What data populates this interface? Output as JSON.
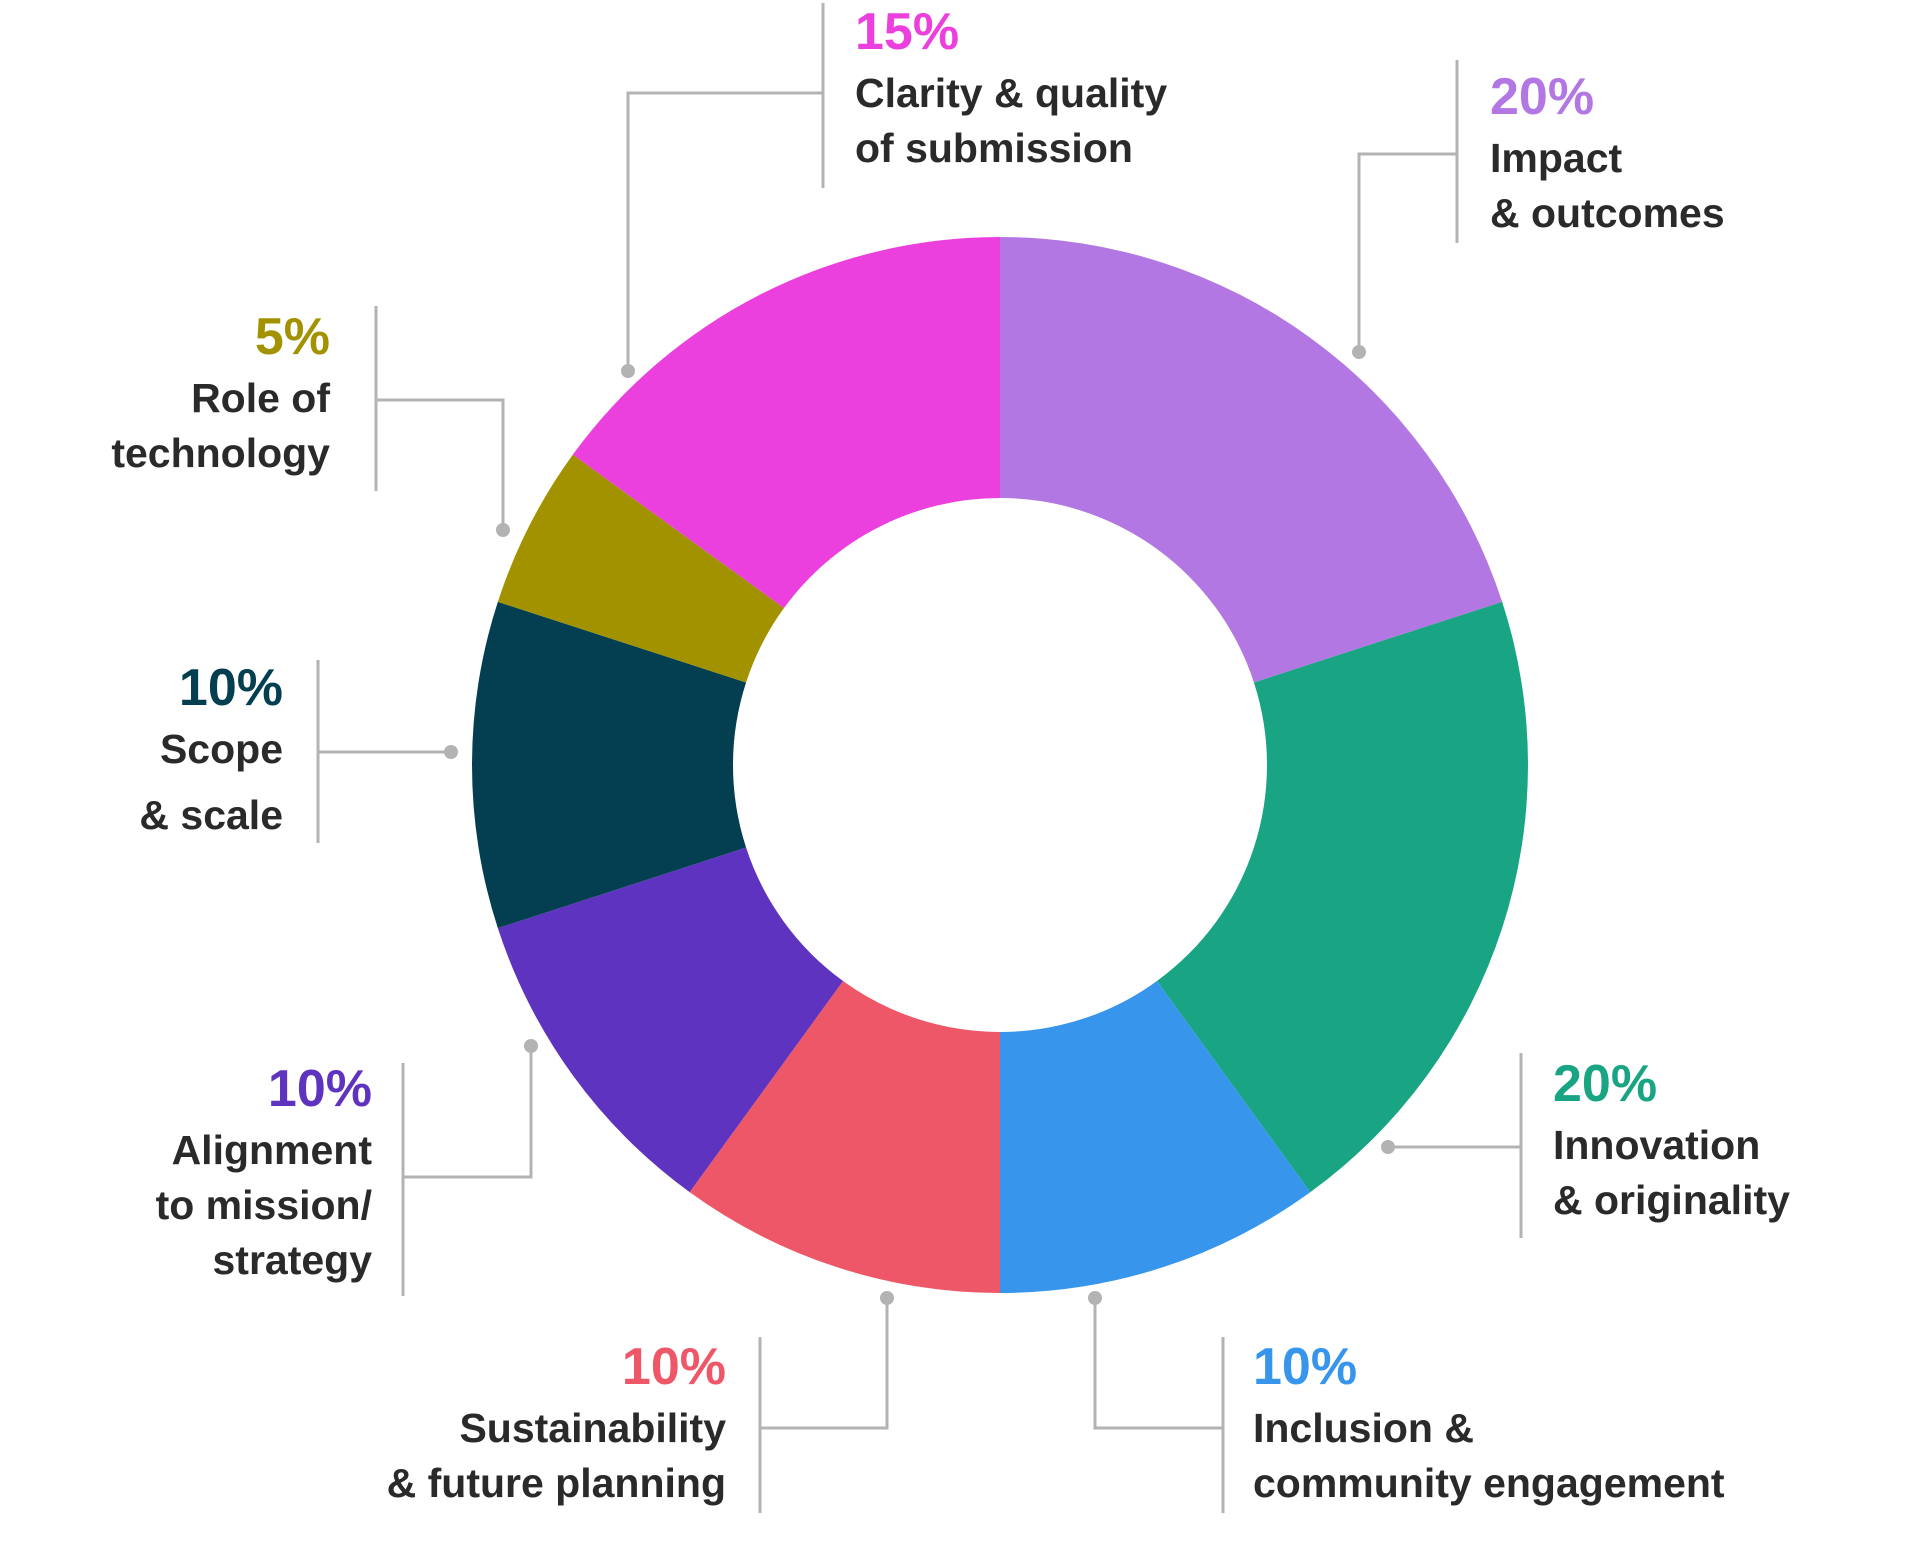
{
  "chart_data": {
    "type": "pie",
    "variant": "donut",
    "title": "",
    "start_angle_deg": 0,
    "direction": "clockwise",
    "slices": [
      {
        "value": 20,
        "label": "20%",
        "name_lines": [
          "Impact",
          "& outcomes"
        ],
        "color": "#B277E3"
      },
      {
        "value": 20,
        "label": "20%",
        "name_lines": [
          "Innovation",
          "& originality"
        ],
        "color": "#19A583"
      },
      {
        "value": 10,
        "label": "10%",
        "name_lines": [
          "Inclusion &",
          "community engagement"
        ],
        "color": "#3795EC"
      },
      {
        "value": 10,
        "label": "10%",
        "name_lines": [
          "Sustainability",
          "& future planning"
        ],
        "color": "#EE5767"
      },
      {
        "value": 10,
        "label": "10%",
        "name_lines": [
          "Alignment",
          "to mission/",
          "strategy"
        ],
        "color": "#5E33BF"
      },
      {
        "value": 10,
        "label": "10%",
        "name_lines": [
          "Scope",
          "& scale"
        ],
        "color": "#033F50"
      },
      {
        "value": 5,
        "label": "5%",
        "name_lines": [
          "Role of",
          "technology"
        ],
        "color": "#A39200"
      },
      {
        "value": 15,
        "label": "15%",
        "name_lines": [
          "Clarity & quality",
          "of submission"
        ],
        "color": "#EB40DD"
      }
    ]
  }
}
